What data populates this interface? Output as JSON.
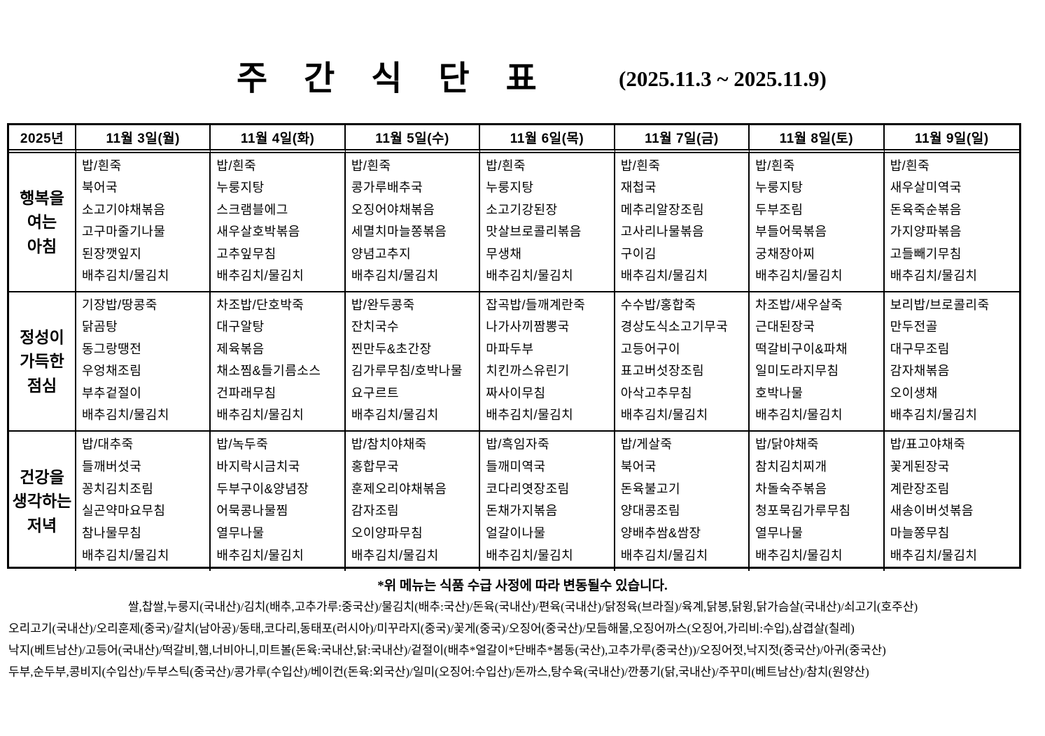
{
  "title": "주 간 식 단 표",
  "date_range": "(2025.11.3 ~ 2025.11.9)",
  "table": {
    "year_label": "2025년",
    "day_headers": [
      "11월 3일(월)",
      "11월 4일(화)",
      "11월 5일(수)",
      "11월 6일(목)",
      "11월 7일(금)",
      "11월 8일(토)",
      "11월 9일(일)"
    ],
    "sections": [
      {
        "label_lines": [
          "행복을",
          "여는",
          "아침"
        ],
        "days": [
          [
            "밥/흰죽",
            "북어국",
            "소고기야채볶음",
            "고구마줄기나물",
            "된장깻잎지",
            "배추김치/물김치"
          ],
          [
            "밥/흰죽",
            "누룽지탕",
            "스크램블에그",
            "새우살호박볶음",
            "고추잎무침",
            "배추김치/물김치"
          ],
          [
            "밥/흰죽",
            "콩가루배추국",
            "오징어야채볶음",
            "세멸치마늘쫑볶음",
            "양념고추지",
            "배추김치/물김치"
          ],
          [
            "밥/흰죽",
            "누룽지탕",
            "소고기강된장",
            "맛살브로콜리볶음",
            "무생채",
            "배추김치/물김치"
          ],
          [
            "밥/흰죽",
            "재첩국",
            "메추리알장조림",
            "고사리나물볶음",
            "구이김",
            "배추김치/물김치"
          ],
          [
            "밥/흰죽",
            "누룽지탕",
            "두부조림",
            "부들어묵볶음",
            "궁채장아찌",
            "배추김치/물김치"
          ],
          [
            "밥/흰죽",
            "새우살미역국",
            "돈육죽순볶음",
            "가지양파볶음",
            "고들빼기무침",
            "배추김치/물김치"
          ]
        ]
      },
      {
        "label_lines": [
          "정성이",
          "가득한",
          "점심"
        ],
        "days": [
          [
            "기장밥/땅콩죽",
            "닭곰탕",
            "동그랑땡전",
            "우엉채조림",
            "부추겉절이",
            "배추김치/물김치"
          ],
          [
            "차조밥/단호박죽",
            "대구알탕",
            "제육볶음",
            "채소찜&들기름소스",
            "건파래무침",
            "배추김치/물김치"
          ],
          [
            "밥/완두콩죽",
            "잔치국수",
            "찐만두&초간장",
            "김가루무침/호박나물",
            "요구르트",
            "배추김치/물김치"
          ],
          [
            "잡곡밥/들깨계란죽",
            "나가사끼짬뽕국",
            "마파두부",
            "치킨까스유린기",
            "짜사이무침",
            "배추김치/물김치"
          ],
          [
            "수수밥/홍합죽",
            "경상도식소고기무국",
            "고등어구이",
            "표고버섯장조림",
            "아삭고추무침",
            "배추김치/물김치"
          ],
          [
            "차조밥/새우살죽",
            "근대된장국",
            "떡갈비구이&파채",
            "일미도라지무침",
            "호박나물",
            "배추김치/물김치"
          ],
          [
            "보리밥/브로콜리죽",
            "만두전골",
            "대구무조림",
            "감자채볶음",
            "오이생채",
            "배추김치/물김치"
          ]
        ]
      },
      {
        "label_lines": [
          "건강을",
          "생각하는",
          "저녁"
        ],
        "days": [
          [
            "밥/대추죽",
            "들깨버섯국",
            "꽁치김치조림",
            "실곤약마요무침",
            "참나물무침",
            "배추김치/물김치"
          ],
          [
            "밥/녹두죽",
            "바지락시금치국",
            "두부구이&양념장",
            "어묵콩나물찜",
            "열무나물",
            "배추김치/물김치"
          ],
          [
            "밥/참치야채죽",
            "홍합무국",
            "훈제오리야채볶음",
            "감자조림",
            "오이양파무침",
            "배추김치/물김치"
          ],
          [
            "밥/흑임자죽",
            "들깨미역국",
            "코다리엿장조림",
            "돈채가지볶음",
            "얼갈이나물",
            "배추김치/물김치"
          ],
          [
            "밥/게살죽",
            "북어국",
            "돈육불고기",
            "양대콩조림",
            "양배추쌈&쌈장",
            "배추김치/물김치"
          ],
          [
            "밥/닭야채죽",
            "참치김치찌개",
            "차돌숙주볶음",
            "청포묵김가루무침",
            "열무나물",
            "배추김치/물김치"
          ],
          [
            "밥/표고야채죽",
            "꽃게된장국",
            "계란장조림",
            "새송이버섯볶음",
            "마늘쫑무침",
            "배추김치/물김치"
          ]
        ]
      }
    ]
  },
  "note": "*위 메뉴는 식품 수급 사정에 따라 변동될수 있습니다.",
  "origin_lines": [
    "쌀,찹쌀,누룽지(국내산)/김치(배추,고추가루:중국산)/물김치(배추:국산)/돈육(국내산)/편육(국내산)/닭정육(브라질)/육계,닭봉,닭윙,닭가슴살(국내산)/쇠고기(호주산)",
    "오리고기(국내산)/오리훈제(중국)/갈치(남아공)/동태,코다리,동태포(러시아)/미꾸라지(중국)/꽃게(중국)/오징어(중국산)/모듬해물,오징어까스(오징어,가리비:수입),삼겹살(칠레)",
    "낙지(베트남산)/고등어(국내산)/떡갈비,햄,너비아니,미트볼(돈육:국내산,닭:국내산)/겉절이(배추*얼갈이*단배추*봄동(국산),고추가루(중국산))/오징어젓,낙지젓(중국산)/아귀(중국산)",
    "두부,순두부,콩비지(수입산)/두부스틱(중국산)/콩가루(수입산)/베이컨(돈육:외국산)/일미(오징어:수입산)/돈까스,탕수육(국내산)/깐풍기(닭,국내산)/주꾸미(베트남산)/참치(원양산)"
  ]
}
